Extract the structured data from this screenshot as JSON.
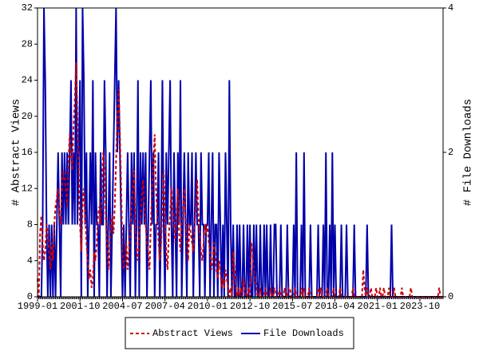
{
  "chart_data": {
    "type": "line",
    "x": [
      "1999-01",
      "1999-02",
      "1999-03",
      "1999-04",
      "1999-05",
      "1999-06",
      "1999-07",
      "1999-08",
      "1999-09",
      "1999-10",
      "1999-11",
      "1999-12",
      "2000-01",
      "2000-02",
      "2000-03",
      "2000-04",
      "2000-05",
      "2000-06",
      "2000-07",
      "2000-08",
      "2000-09",
      "2000-10",
      "2000-11",
      "2000-12",
      "2001-01",
      "2001-02",
      "2001-03",
      "2001-04",
      "2001-05",
      "2001-06",
      "2001-07",
      "2001-08",
      "2001-09",
      "2001-10",
      "2001-11",
      "2001-12",
      "2002-01",
      "2002-02",
      "2002-03",
      "2002-04",
      "2002-05",
      "2002-06",
      "2002-07",
      "2002-08",
      "2002-09",
      "2002-10",
      "2002-11",
      "2002-12",
      "2003-01",
      "2003-02",
      "2003-03",
      "2003-04",
      "2003-05",
      "2003-06",
      "2003-07",
      "2003-08",
      "2003-09",
      "2003-10",
      "2003-11",
      "2003-12",
      "2004-01",
      "2004-02",
      "2004-03",
      "2004-04",
      "2004-05",
      "2004-06",
      "2004-07",
      "2004-08",
      "2004-09",
      "2004-10",
      "2004-11",
      "2004-12",
      "2005-01",
      "2005-02",
      "2005-03",
      "2005-04",
      "2005-05",
      "2005-06",
      "2005-07",
      "2005-08",
      "2005-09",
      "2005-10",
      "2005-11",
      "2005-12",
      "2006-01",
      "2006-02",
      "2006-03",
      "2006-04",
      "2006-05",
      "2006-06",
      "2006-07",
      "2006-08",
      "2006-09",
      "2006-10",
      "2006-11",
      "2006-12",
      "2007-01",
      "2007-02",
      "2007-03",
      "2007-04",
      "2007-05",
      "2007-06",
      "2007-07",
      "2007-08",
      "2007-09",
      "2007-10",
      "2007-11",
      "2007-12",
      "2008-01",
      "2008-02",
      "2008-03",
      "2008-04",
      "2008-05",
      "2008-06",
      "2008-07",
      "2008-08",
      "2008-09",
      "2008-10",
      "2008-11",
      "2008-12",
      "2009-01",
      "2009-02",
      "2009-03",
      "2009-04",
      "2009-05",
      "2009-06",
      "2009-07",
      "2009-08",
      "2009-09",
      "2009-10",
      "2009-11",
      "2009-12",
      "2010-01",
      "2010-02",
      "2010-03",
      "2010-04",
      "2010-05",
      "2010-06",
      "2010-07",
      "2010-08",
      "2010-09",
      "2010-10",
      "2010-11",
      "2010-12",
      "2011-01",
      "2011-02",
      "2011-03",
      "2011-04",
      "2011-05",
      "2011-06",
      "2011-07",
      "2011-08",
      "2011-09",
      "2011-10",
      "2011-11",
      "2011-12",
      "2012-01",
      "2012-02",
      "2012-03",
      "2012-04",
      "2012-05",
      "2012-06",
      "2012-07",
      "2012-08",
      "2012-09",
      "2012-10",
      "2012-11",
      "2012-12",
      "2013-01",
      "2013-02",
      "2013-03",
      "2013-04",
      "2013-05",
      "2013-06",
      "2013-07",
      "2013-08",
      "2013-09",
      "2013-10",
      "2013-11",
      "2013-12",
      "2014-01",
      "2014-02",
      "2014-03",
      "2014-04",
      "2014-05",
      "2014-06",
      "2014-07",
      "2014-08",
      "2014-09",
      "2014-10",
      "2014-11",
      "2014-12",
      "2015-01",
      "2015-02",
      "2015-03",
      "2015-04",
      "2015-05",
      "2015-06",
      "2015-07",
      "2015-08",
      "2015-09",
      "2015-10",
      "2015-11",
      "2015-12",
      "2016-01",
      "2016-02",
      "2016-03",
      "2016-04",
      "2016-05",
      "2016-06",
      "2016-07",
      "2016-08",
      "2016-09",
      "2016-10",
      "2016-11",
      "2016-12",
      "2017-01",
      "2017-02",
      "2017-03",
      "2017-04",
      "2017-05",
      "2017-06",
      "2017-07",
      "2017-08",
      "2017-09",
      "2017-10",
      "2017-11",
      "2017-12",
      "2018-01",
      "2018-02",
      "2018-03",
      "2018-04",
      "2018-05",
      "2018-06",
      "2018-07",
      "2018-08",
      "2018-09",
      "2018-10",
      "2018-11",
      "2018-12",
      "2019-01",
      "2019-02",
      "2019-03",
      "2019-04",
      "2019-05",
      "2019-06",
      "2019-07",
      "2019-08",
      "2019-09",
      "2019-10",
      "2019-11",
      "2019-12",
      "2020-01",
      "2020-02",
      "2020-03",
      "2020-04",
      "2020-05",
      "2020-06",
      "2020-07",
      "2020-08",
      "2020-09",
      "2020-10",
      "2020-11",
      "2020-12",
      "2021-01",
      "2021-02",
      "2021-03",
      "2021-04",
      "2021-05",
      "2021-06",
      "2021-07",
      "2021-08",
      "2021-09",
      "2021-10",
      "2021-11",
      "2021-12",
      "2022-01",
      "2022-02",
      "2022-03",
      "2022-04",
      "2022-05",
      "2022-06",
      "2022-07",
      "2022-08",
      "2022-09",
      "2022-10",
      "2022-11",
      "2022-12",
      "2023-01",
      "2023-02",
      "2023-03",
      "2023-04",
      "2023-05",
      "2023-06",
      "2023-07",
      "2023-08",
      "2023-09",
      "2023-10",
      "2023-11",
      "2023-12",
      "2024-01",
      "2024-02",
      "2024-03",
      "2024-04",
      "2024-05",
      "2024-06",
      "2024-07",
      "2024-08",
      "2024-09",
      "2024-10",
      "2024-11",
      "2024-12",
      "2025-01",
      "2025-02",
      "2025-03",
      "2025-04"
    ],
    "xticks": [
      "1999-01",
      "2001-10",
      "2004-07",
      "2007-04",
      "2010-01",
      "2012-10",
      "2015-07",
      "2018-04",
      "2021-01",
      "2023-10"
    ],
    "ylabel": "# Abstract Views",
    "y2label": "# File Downloads",
    "ylim": [
      0,
      32
    ],
    "yticks": [
      0,
      4,
      8,
      12,
      16,
      20,
      24,
      28,
      32
    ],
    "y2lim": [
      0,
      4
    ],
    "y2ticks": [
      0,
      2,
      4
    ],
    "series": [
      {
        "name": "Abstract Views",
        "color": "#cc0000",
        "dash": true,
        "values": [
          2,
          0,
          7,
          9,
          6,
          4,
          5,
          8,
          7,
          5,
          3,
          6,
          4,
          8,
          10,
          11,
          12,
          9,
          8,
          12,
          14,
          13,
          12,
          10,
          15,
          18,
          16,
          14,
          19,
          22,
          26,
          20,
          14,
          8,
          5,
          10,
          12,
          9,
          6,
          4,
          2,
          3,
          1,
          2,
          5,
          4,
          6,
          9,
          10,
          8,
          12,
          16,
          14,
          9,
          6,
          3,
          5,
          8,
          9,
          7,
          10,
          15,
          20,
          23,
          18,
          12,
          5,
          3,
          4,
          6,
          3,
          5,
          7,
          10,
          12,
          14,
          8,
          5,
          4,
          7,
          9,
          11,
          13,
          10,
          8,
          6,
          5,
          3,
          8,
          12,
          15,
          18,
          12,
          9,
          6,
          4,
          6,
          10,
          14,
          9,
          5,
          3,
          7,
          9,
          12,
          10,
          8,
          6,
          9,
          12,
          7,
          5,
          8,
          10,
          12,
          9,
          6,
          4,
          8,
          7,
          6,
          5,
          8,
          10,
          13,
          9,
          7,
          5,
          4,
          6,
          8,
          7,
          8,
          6,
          5,
          3,
          4,
          6,
          5,
          3,
          2,
          4,
          3,
          1,
          2,
          1,
          3,
          2,
          1,
          0,
          1,
          0,
          5,
          3,
          1,
          0,
          1,
          0,
          1,
          0,
          2,
          1,
          0,
          0,
          1,
          0,
          6,
          5,
          3,
          2,
          1,
          0,
          0,
          1,
          0,
          0,
          0,
          1,
          0,
          0,
          0,
          1,
          0,
          0,
          1,
          0,
          0,
          0,
          1,
          0,
          0,
          0,
          1,
          0,
          0,
          1,
          1,
          0,
          0,
          0,
          1,
          0,
          0,
          0,
          0,
          1,
          0,
          1,
          0,
          0,
          0,
          1,
          0,
          0,
          0,
          0,
          0,
          0,
          1,
          0,
          1,
          0,
          0,
          0,
          0,
          1,
          0,
          0,
          0,
          0,
          1,
          0,
          0,
          0,
          0,
          1,
          0,
          0,
          0,
          0,
          0,
          0,
          0,
          0,
          0,
          1,
          0,
          0,
          0,
          0,
          0,
          0,
          0,
          3,
          1,
          0,
          1,
          0,
          0,
          1,
          0,
          0,
          0,
          1,
          0,
          0,
          1,
          0,
          0,
          1,
          0,
          0,
          0,
          1,
          0,
          0,
          0,
          1,
          0,
          0,
          0,
          0,
          0,
          1,
          0,
          0,
          0,
          0,
          0,
          0,
          1,
          0,
          0,
          0,
          0,
          0,
          0,
          0,
          0,
          0,
          0,
          0,
          0,
          0,
          0,
          0,
          0,
          0,
          0,
          0,
          0,
          0,
          1,
          0,
          0,
          0
        ]
      },
      {
        "name": "File Downloads",
        "color": "#0000aa",
        "axis": "y2",
        "values": [
          0,
          0,
          0,
          0,
          1,
          4,
          3,
          1,
          0,
          1,
          0,
          1,
          0,
          1,
          0,
          1,
          2,
          1,
          0,
          2,
          1,
          2,
          1,
          2,
          1,
          2,
          3,
          1,
          2,
          1,
          4,
          1,
          2,
          3,
          0,
          4,
          3,
          1,
          2,
          0,
          1,
          2,
          1,
          3,
          0,
          2,
          1,
          1,
          0,
          2,
          1,
          1,
          3,
          2,
          0,
          1,
          2,
          0,
          1,
          2,
          3,
          4,
          2,
          3,
          2,
          1,
          0,
          1,
          0,
          1,
          2,
          1,
          0,
          2,
          1,
          2,
          0,
          1,
          3,
          0,
          2,
          1,
          2,
          1,
          2,
          0,
          1,
          2,
          3,
          1,
          2,
          0,
          1,
          1,
          2,
          0,
          1,
          3,
          1,
          0,
          2,
          1,
          2,
          3,
          1,
          0,
          2,
          1,
          0,
          2,
          1,
          3,
          0,
          1,
          2,
          1,
          0,
          2,
          1,
          1,
          2,
          0,
          1,
          2,
          1,
          1,
          0,
          2,
          1,
          1,
          0,
          1,
          1,
          2,
          0,
          1,
          2,
          0,
          1,
          1,
          0,
          2,
          1,
          0,
          1,
          0,
          2,
          1,
          0,
          3,
          1,
          0,
          1,
          0,
          0,
          1,
          0,
          1,
          0,
          0,
          1,
          0,
          0,
          1,
          0,
          1,
          0,
          0,
          1,
          0,
          1,
          0,
          0,
          1,
          0,
          0,
          1,
          0,
          1,
          0,
          0,
          1,
          0,
          0,
          1,
          1,
          0,
          0,
          0,
          1,
          0,
          0,
          0,
          0,
          1,
          0,
          0,
          0,
          0,
          1,
          0,
          2,
          0,
          0,
          0,
          1,
          0,
          2,
          0,
          0,
          0,
          0,
          1,
          0,
          0,
          0,
          0,
          0,
          1,
          0,
          0,
          0,
          1,
          0,
          2,
          0,
          0,
          1,
          0,
          2,
          0,
          1,
          0,
          0,
          0,
          0,
          1,
          0,
          0,
          0,
          1,
          0,
          0,
          0,
          0,
          0,
          1,
          0,
          0,
          0,
          0,
          0,
          0,
          0,
          0,
          0,
          1,
          0,
          0,
          0,
          0,
          0,
          0,
          0,
          0,
          0,
          0,
          0,
          0,
          0,
          0,
          0,
          0,
          0,
          0,
          1,
          0,
          0,
          0,
          0,
          0,
          0,
          0,
          0,
          0,
          0,
          0,
          0,
          0,
          0,
          0,
          0,
          0,
          0,
          0,
          0,
          0,
          0,
          0,
          0,
          0,
          0,
          0,
          0,
          0,
          0,
          0,
          0,
          0,
          0,
          0,
          0,
          0,
          0,
          0,
          0
        ]
      }
    ]
  }
}
